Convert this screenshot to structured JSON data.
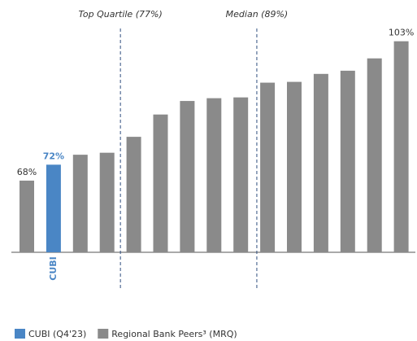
{
  "chart_data": {
    "type": "bar",
    "categories": [
      null,
      "CUBI",
      null,
      null,
      null,
      null,
      null,
      null,
      null,
      null,
      null,
      null,
      null,
      null,
      null
    ],
    "series": [
      {
        "name": "CUBI (Q4'23)",
        "color": "#4a86c5",
        "values": [
          null,
          72,
          null,
          null,
          null,
          null,
          null,
          null,
          null,
          null,
          null,
          null,
          null,
          null,
          null
        ],
        "value_labels": [
          null,
          "72%",
          null,
          null,
          null,
          null,
          null,
          null,
          null,
          null,
          null,
          null,
          null,
          null,
          null
        ]
      },
      {
        "name": "Regional Bank Peers³ (MRQ)",
        "color": "#8a8a8a",
        "values": [
          68,
          null,
          74.5,
          75,
          79,
          84.6,
          88,
          88.7,
          88.9,
          92.6,
          92.8,
          94.8,
          95.6,
          98.7,
          103
        ],
        "value_labels": [
          "68%",
          null,
          null,
          null,
          null,
          null,
          null,
          null,
          null,
          null,
          null,
          null,
          null,
          null,
          "103%"
        ]
      }
    ],
    "ylim": [
      50,
      106
    ],
    "annotations": [
      "Top Quartile (77%)",
      "Median (89%)"
    ]
  }
}
